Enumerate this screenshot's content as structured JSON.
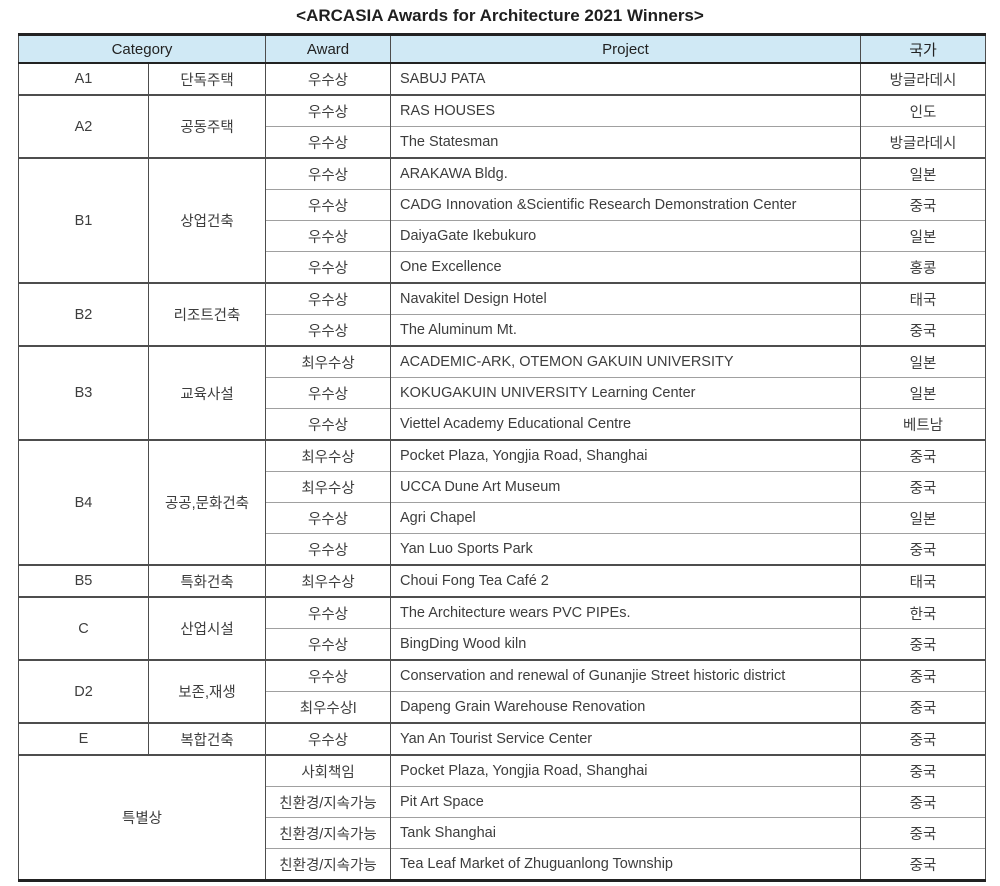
{
  "title": "<ARCASIA Awards for Architecture 2021 Winners>",
  "header": {
    "category": "Category",
    "award": "Award",
    "project": "Project",
    "country": "국가"
  },
  "colors": {
    "header_bg": "#d0e9f5",
    "heavy_border": "#222222",
    "group_border": "#4d4d4d",
    "row_border": "#a0a0a0",
    "text": "#3d3d3d"
  },
  "groups": [
    {
      "code": "A1",
      "label": "단독주택",
      "rows": [
        {
          "award": "우수상",
          "project": "SABUJ PATA",
          "country": "방글라데시"
        }
      ]
    },
    {
      "code": "A2",
      "label": "공동주택",
      "rows": [
        {
          "award": "우수상",
          "project": "RAS HOUSES",
          "country": "인도"
        },
        {
          "award": "우수상",
          "project": "The Statesman",
          "country": "방글라데시"
        }
      ]
    },
    {
      "code": "B1",
      "label": "상업건축",
      "rows": [
        {
          "award": "우수상",
          "project": "ARAKAWA Bldg.",
          "country": "일본"
        },
        {
          "award": "우수상",
          "project": "CADG Innovation &Scientific Research Demonstration Center",
          "country": "중국"
        },
        {
          "award": "우수상",
          "project": "DaiyaGate Ikebukuro",
          "country": "일본"
        },
        {
          "award": "우수상",
          "project": "One Excellence",
          "country": "홍콩"
        }
      ]
    },
    {
      "code": "B2",
      "label": "리조트건축",
      "rows": [
        {
          "award": "우수상",
          "project": "Navakitel Design Hotel",
          "country": "태국"
        },
        {
          "award": "우수상",
          "project": "The Aluminum Mt.",
          "country": "중국"
        }
      ]
    },
    {
      "code": "B3",
      "label": "교육사설",
      "rows": [
        {
          "award": "최우수상",
          "project": "ACADEMIC-ARK, OTEMON GAKUIN UNIVERSITY",
          "country": "일본"
        },
        {
          "award": "우수상",
          "project": "KOKUGAKUIN UNIVERSITY Learning Center",
          "country": "일본"
        },
        {
          "award": "우수상",
          "project": "Viettel Academy Educational Centre",
          "country": "베트남"
        }
      ]
    },
    {
      "code": "B4",
      "label": "공공,문화건축",
      "rows": [
        {
          "award": "최우수상",
          "project": "Pocket Plaza, Yongjia Road, Shanghai",
          "country": "중국"
        },
        {
          "award": "최우수상",
          "project": "UCCA Dune Art Museum",
          "country": "중국"
        },
        {
          "award": "우수상",
          "project": "Agri Chapel",
          "country": "일본"
        },
        {
          "award": "우수상",
          "project": "Yan Luo Sports Park",
          "country": "중국"
        }
      ]
    },
    {
      "code": "B5",
      "label": "특화건축",
      "rows": [
        {
          "award": "최우수상",
          "project": "Choui Fong Tea Café 2",
          "country": "태국"
        }
      ]
    },
    {
      "code": "C",
      "label": "산업시설",
      "rows": [
        {
          "award": "우수상",
          "project": "The Architecture wears PVC PIPEs.",
          "country": "한국"
        },
        {
          "award": "우수상",
          "project": "BingDing Wood kiln",
          "country": "중국"
        }
      ]
    },
    {
      "code": "D2",
      "label": "보존,재생",
      "rows": [
        {
          "award": "우수상",
          "project": "Conservation and renewal of Gunanjie Street historic district",
          "country": "중국"
        },
        {
          "award": "최우수상l",
          "project": "Dapeng Grain Warehouse Renovation",
          "country": "중국"
        }
      ]
    },
    {
      "code": "E",
      "label": "복합건축",
      "rows": [
        {
          "award": "우수상",
          "project": "Yan An Tourist Service Center",
          "country": "중국"
        }
      ]
    },
    {
      "code": "",
      "label": "특별상",
      "rows": [
        {
          "award": "사회책임",
          "project": "Pocket Plaza, Yongjia Road, Shanghai",
          "country": "중국"
        },
        {
          "award": "친환경/지속가능",
          "project": "Pit Art Space",
          "country": "중국"
        },
        {
          "award": "친환경/지속가능",
          "project": "Tank Shanghai",
          "country": "중국"
        },
        {
          "award": "친환경/지속가능",
          "project": "Tea Leaf Market of Zhuguanlong Township",
          "country": "중국"
        }
      ]
    }
  ]
}
